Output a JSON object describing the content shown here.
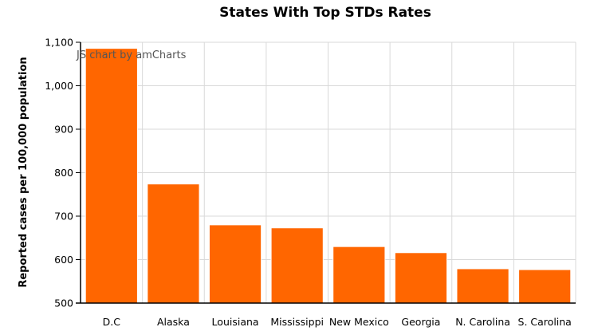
{
  "chart_data": {
    "type": "bar",
    "title": "States With Top STDs Rates",
    "ylabel": "Reported cases per 100,000 population",
    "xlabel": "",
    "categories": [
      "D.C",
      "Alaska",
      "Louisiana",
      "Mississippi",
      "New Mexico",
      "Georgia",
      "N. Carolina",
      "S. Carolina"
    ],
    "values": [
      1086,
      774,
      680,
      673,
      630,
      616,
      579,
      577
    ],
    "ylim": [
      500,
      1100
    ],
    "yticks": [
      {
        "value": 500,
        "label": "500"
      },
      {
        "value": 600,
        "label": "600"
      },
      {
        "value": 700,
        "label": "700"
      },
      {
        "value": 800,
        "label": "800"
      },
      {
        "value": 900,
        "label": "900"
      },
      {
        "value": 1000,
        "label": "1,000"
      },
      {
        "value": 1100,
        "label": "1,100"
      }
    ],
    "grid": true,
    "bar_color": "#FF6600",
    "credit": "JS chart by amCharts"
  }
}
